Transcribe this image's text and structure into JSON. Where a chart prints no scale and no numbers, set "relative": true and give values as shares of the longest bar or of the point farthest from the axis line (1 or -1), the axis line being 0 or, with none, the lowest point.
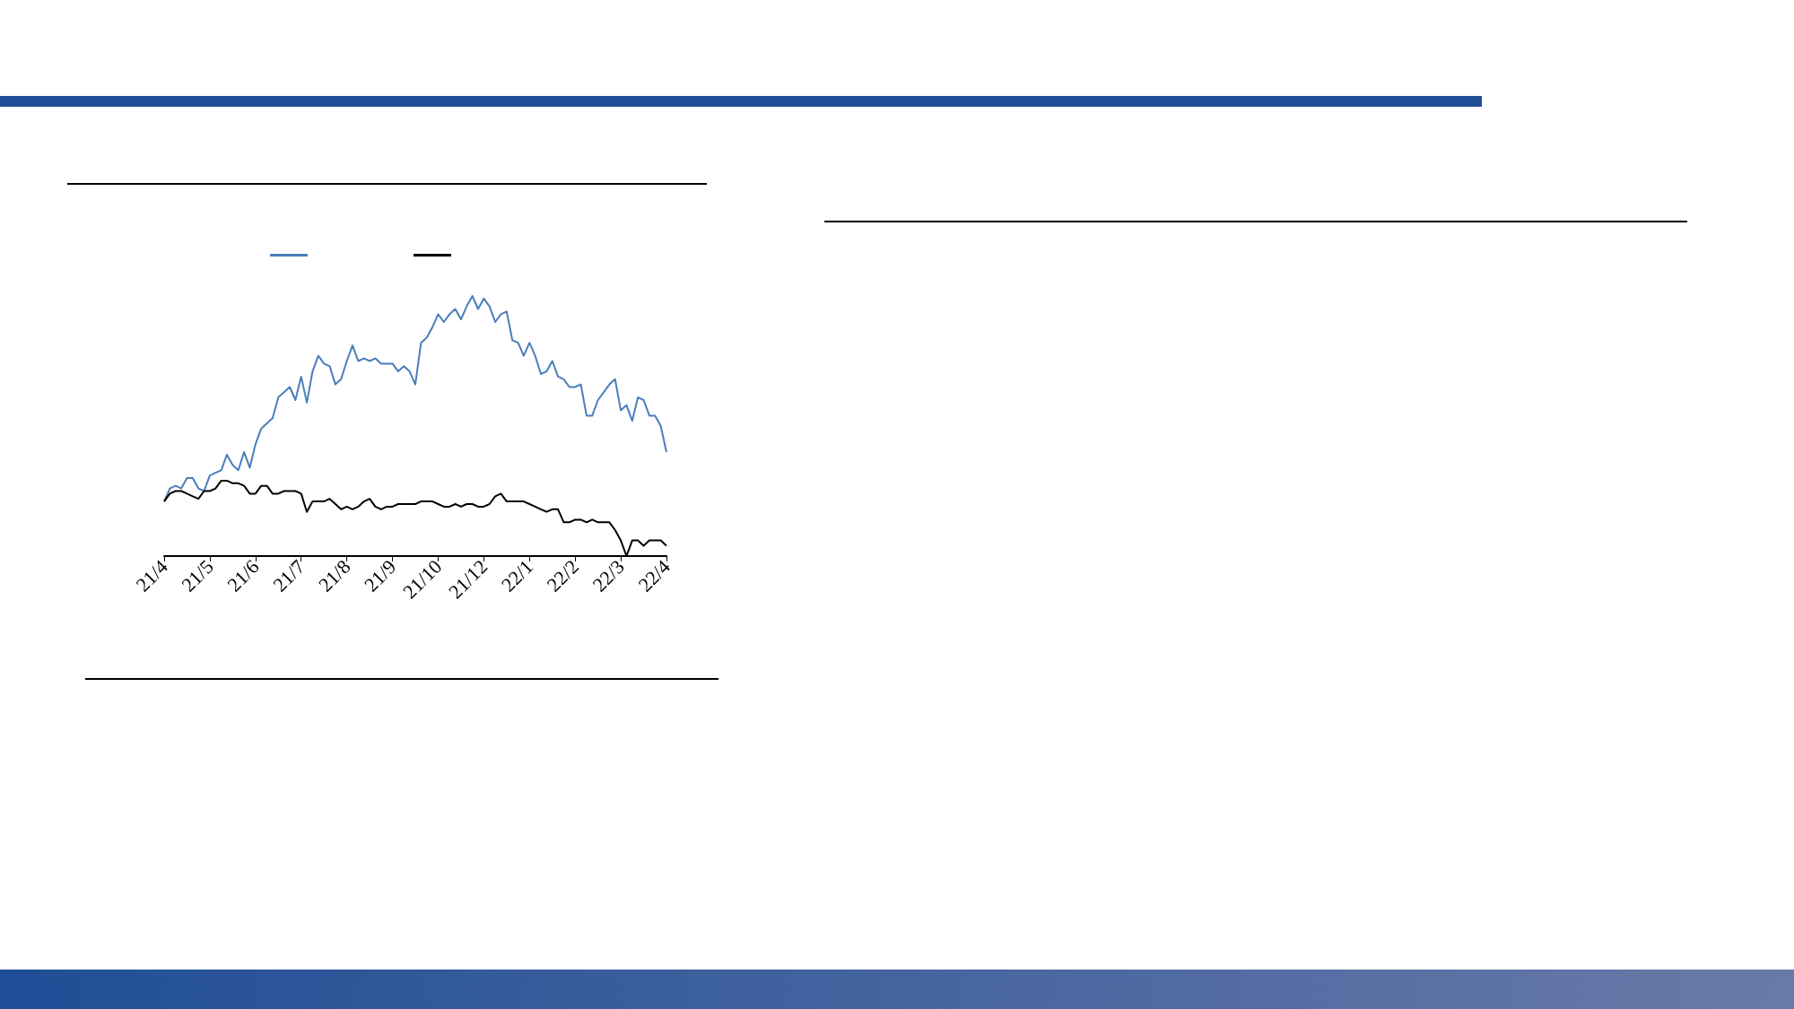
{
  "chart_data": {
    "type": "line",
    "relative": true,
    "grid": false,
    "marker": "none",
    "line_style": "solid",
    "categories": [
      "21/4",
      null,
      null,
      null,
      null,
      null,
      null,
      null,
      "21/5",
      null,
      null,
      null,
      null,
      null,
      null,
      null,
      "21/6",
      null,
      null,
      null,
      null,
      null,
      null,
      null,
      "21/7",
      null,
      null,
      null,
      null,
      null,
      null,
      null,
      "21/8",
      null,
      null,
      null,
      null,
      null,
      null,
      null,
      "21/9",
      null,
      null,
      null,
      null,
      null,
      null,
      null,
      "21/10",
      null,
      null,
      null,
      null,
      null,
      null,
      null,
      "21/12",
      null,
      null,
      null,
      null,
      null,
      null,
      null,
      "22/1",
      null,
      null,
      null,
      null,
      null,
      null,
      null,
      "22/2",
      null,
      null,
      null,
      null,
      null,
      null,
      null,
      "22/3",
      null,
      null,
      null,
      null,
      null,
      null,
      null,
      "22/4"
    ],
    "series": [
      {
        "color": "#4a7ebb",
        "values": [
          0.21,
          0.26,
          0.27,
          0.26,
          0.3,
          0.3,
          0.26,
          0.25,
          0.31,
          0.32,
          0.33,
          0.39,
          0.35,
          0.33,
          0.4,
          0.34,
          0.43,
          0.49,
          0.51,
          0.53,
          0.61,
          0.63,
          0.65,
          0.6,
          0.69,
          0.59,
          0.71,
          0.77,
          0.74,
          0.73,
          0.66,
          0.68,
          0.75,
          0.81,
          0.75,
          0.76,
          0.75,
          0.76,
          0.74,
          0.74,
          0.74,
          0.71,
          0.73,
          0.71,
          0.66,
          0.82,
          0.84,
          0.88,
          0.93,
          0.9,
          0.93,
          0.95,
          0.91,
          0.96,
          1.0,
          0.95,
          0.99,
          0.96,
          0.9,
          0.93,
          0.94,
          0.83,
          0.82,
          0.77,
          0.82,
          0.77,
          0.7,
          0.71,
          0.75,
          0.69,
          0.68,
          0.65,
          0.65,
          0.66,
          0.54,
          0.54,
          0.6,
          0.63,
          0.66,
          0.68,
          0.56,
          0.58,
          0.52,
          0.61,
          0.6,
          0.54,
          0.54,
          0.5,
          0.4
        ]
      },
      {
        "color": "#000000",
        "values": [
          0.21,
          0.24,
          0.25,
          0.25,
          0.24,
          0.23,
          0.22,
          0.25,
          0.25,
          0.26,
          0.29,
          0.29,
          0.28,
          0.28,
          0.27,
          0.24,
          0.24,
          0.27,
          0.27,
          0.24,
          0.24,
          0.25,
          0.25,
          0.25,
          0.24,
          0.17,
          0.21,
          0.21,
          0.21,
          0.22,
          0.2,
          0.18,
          0.19,
          0.18,
          0.19,
          0.21,
          0.22,
          0.19,
          0.18,
          0.19,
          0.19,
          0.2,
          0.2,
          0.2,
          0.2,
          0.21,
          0.21,
          0.21,
          0.2,
          0.19,
          0.19,
          0.2,
          0.19,
          0.2,
          0.2,
          0.19,
          0.19,
          0.2,
          0.23,
          0.24,
          0.21,
          0.21,
          0.21,
          0.21,
          0.2,
          0.19,
          0.18,
          0.17,
          0.18,
          0.18,
          0.13,
          0.13,
          0.14,
          0.14,
          0.13,
          0.14,
          0.13,
          0.13,
          0.13,
          0.1,
          0.06,
          0,
          0.06,
          0.06,
          0.04,
          0.06,
          0.06,
          0.06,
          0.04
        ]
      }
    ]
  }
}
